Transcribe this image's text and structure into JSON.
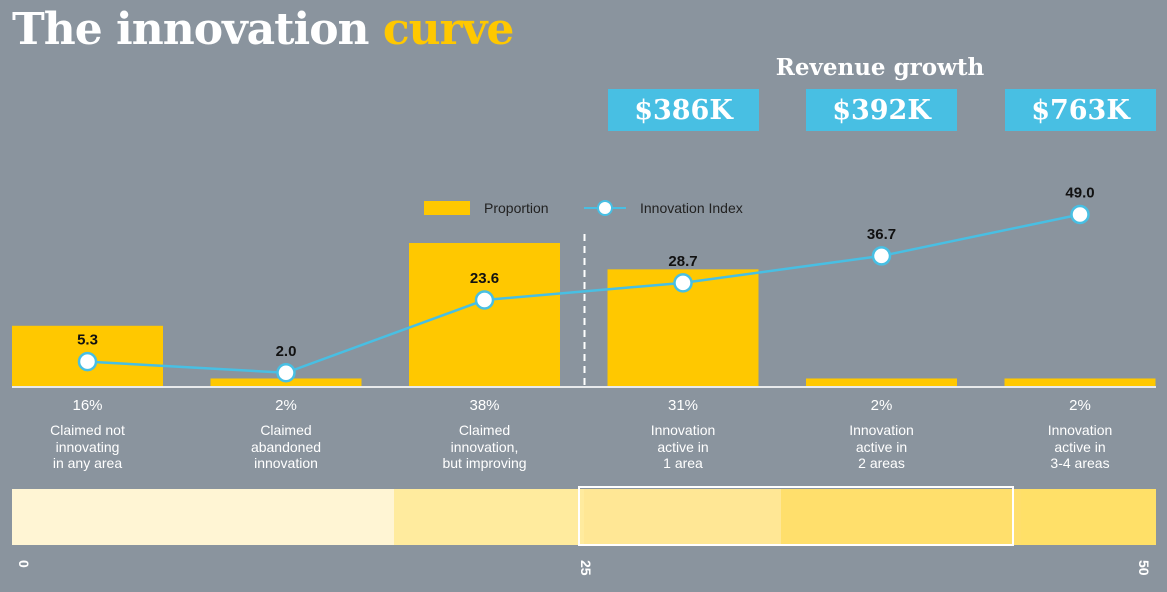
{
  "title": {
    "main": "The innovation",
    "highlight": "curve"
  },
  "revenue": {
    "title": "Revenue growth",
    "values": [
      "$386K",
      "$392K",
      "$763K"
    ]
  },
  "legend": {
    "bar": "Proportion",
    "line": "Innovation Index"
  },
  "colors": {
    "bar": "#ffc800",
    "line": "#48bfe3",
    "background": "#8a949e",
    "revenue_box": "#48bfe3"
  },
  "chart_data": {
    "type": "bar",
    "categories": [
      "Claimed not\ninnovating\nin any area",
      "Claimed\nabandoned\ninnovation",
      "Claimed\ninnovation,\nbut improving",
      "Innovation\nactive in\n1 area",
      "Innovation\nactive in\n2 areas",
      "Innovation\nactive in\n3-4 areas"
    ],
    "series": [
      {
        "name": "Proportion",
        "type": "bar",
        "values": [
          16,
          2,
          38,
          31,
          2,
          2
        ],
        "labels": [
          "16%",
          "2%",
          "38%",
          "31%",
          "2%",
          "2%"
        ]
      },
      {
        "name": "Innovation Index",
        "type": "line",
        "values": [
          5.3,
          2.0,
          23.6,
          28.7,
          36.7,
          49.0
        ],
        "labels": [
          "5.3",
          "2.0",
          "23.6",
          "28.7",
          "36.7",
          "49.0"
        ]
      }
    ],
    "legend_position": "top",
    "divider_after_category": 2,
    "scale": {
      "ticks": [
        "0",
        "25",
        "50"
      ],
      "range": [
        0,
        50
      ],
      "bands": [
        {
          "from": 0,
          "to": 16.7,
          "color": "#fff5d4"
        },
        {
          "from": 16.7,
          "to": 25,
          "color": "#ffeb9e"
        },
        {
          "from": 25,
          "to": 33.6,
          "color": "#ffe795"
        },
        {
          "from": 33.6,
          "to": 44.1,
          "color": "#ffdf6c"
        },
        {
          "from": 44.1,
          "to": 50,
          "color": "#ffe068"
        }
      ],
      "highlight_range": [
        25,
        44.1
      ]
    }
  }
}
